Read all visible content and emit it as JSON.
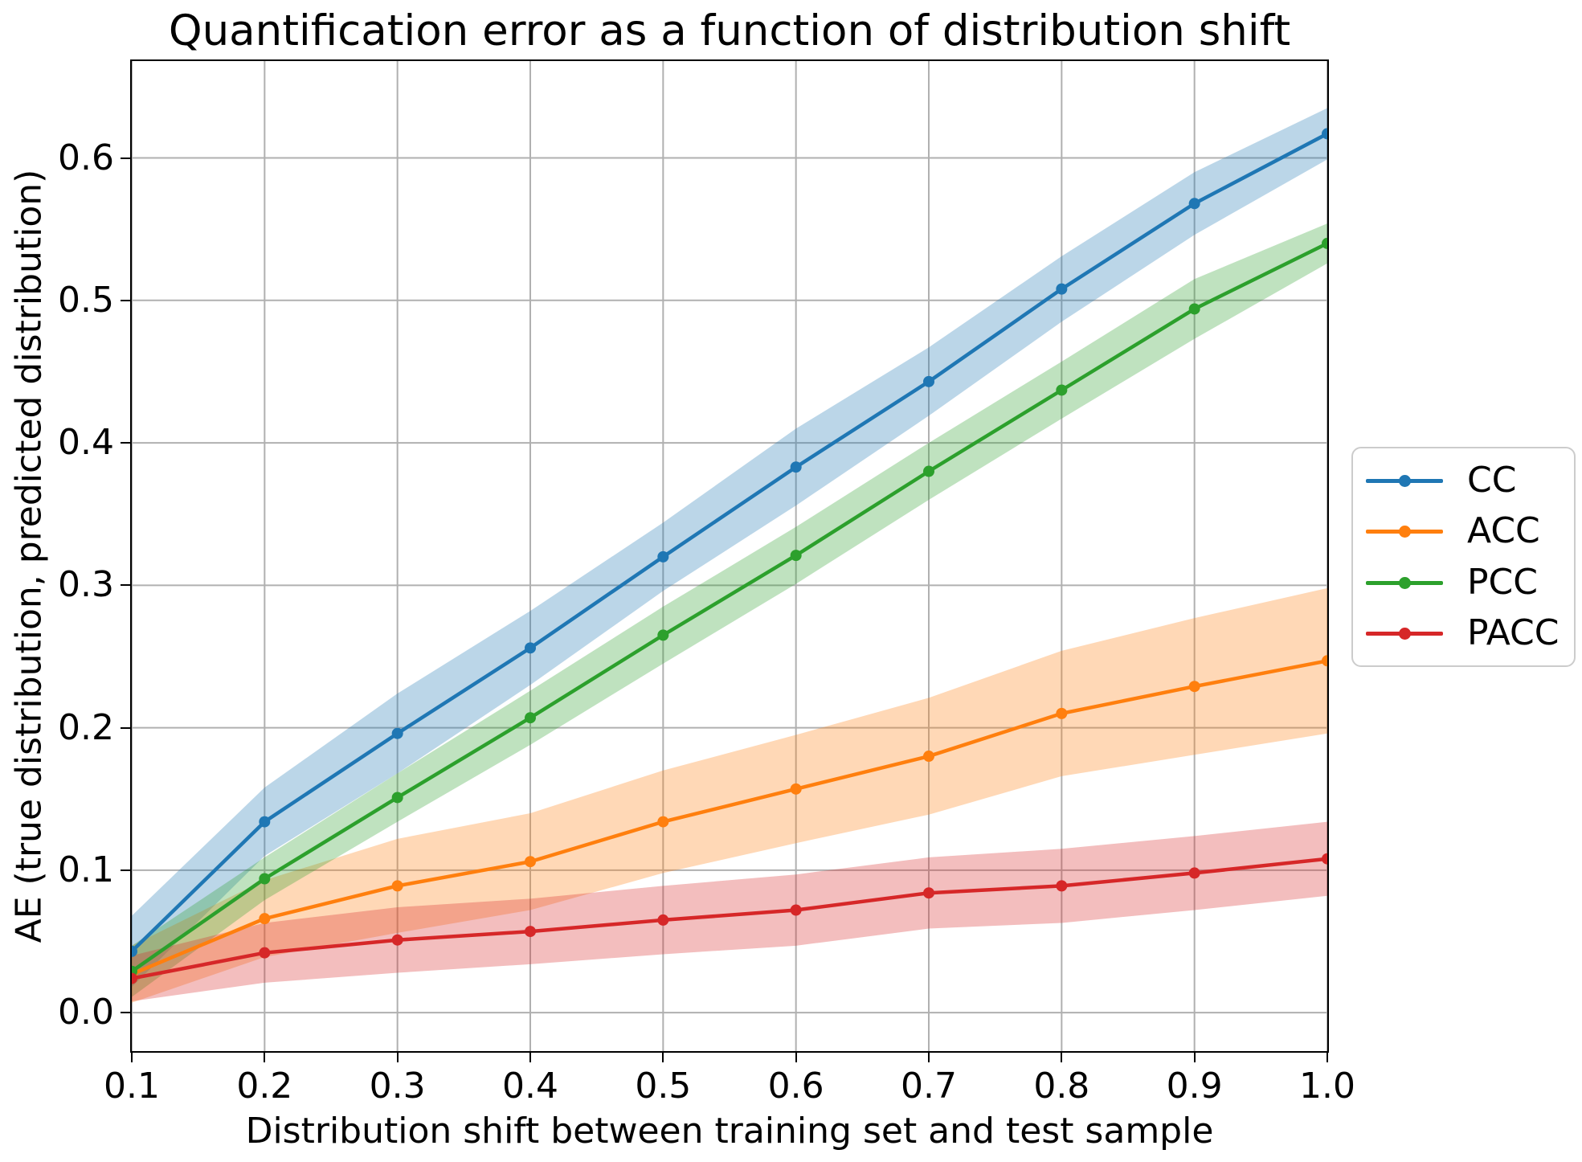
{
  "figure": {
    "title": "Quantification error as a function of distribution shift",
    "xlabel": "Distribution shift between training set and test sample",
    "ylabel": "AE (true distribution, predicted distribution)"
  },
  "chart_data": {
    "type": "line",
    "title": "Quantification error as a function of distribution shift",
    "xlabel": "Distribution shift between training set and test sample",
    "ylabel": "AE (true distribution, predicted distribution)",
    "x": [
      0.1,
      0.2,
      0.3,
      0.4,
      0.5,
      0.6,
      0.7,
      0.8,
      0.9,
      1.0
    ],
    "x_ticks": [
      "0.1",
      "0.2",
      "0.3",
      "0.4",
      "0.5",
      "0.6",
      "0.7",
      "0.8",
      "0.9",
      "1.0"
    ],
    "y_ticks": [
      "0.0",
      "0.1",
      "0.2",
      "0.3",
      "0.4",
      "0.5",
      "0.6"
    ],
    "xlim": [
      0.1,
      1.0
    ],
    "ylim": [
      -0.027,
      0.668
    ],
    "grid": true,
    "grid_color": "#b0b0b0",
    "band_opacity": 0.3,
    "legend_position": "center right, outside axes",
    "series": [
      {
        "name": "CC",
        "color": "#1f77b4",
        "values": [
          0.043,
          0.134,
          0.196,
          0.256,
          0.32,
          0.383,
          0.443,
          0.508,
          0.568,
          0.617
        ],
        "band_halfwidth": [
          0.025,
          0.024,
          0.028,
          0.026,
          0.024,
          0.027,
          0.024,
          0.023,
          0.022,
          0.018
        ]
      },
      {
        "name": "ACC",
        "color": "#ff7f0e",
        "values": [
          0.027,
          0.066,
          0.089,
          0.106,
          0.134,
          0.157,
          0.18,
          0.21,
          0.229,
          0.247
        ],
        "band_halfwidth": [
          0.02,
          0.027,
          0.033,
          0.034,
          0.036,
          0.038,
          0.041,
          0.044,
          0.048,
          0.051
        ]
      },
      {
        "name": "PCC",
        "color": "#2ca02c",
        "values": [
          0.029,
          0.094,
          0.151,
          0.207,
          0.265,
          0.321,
          0.38,
          0.437,
          0.494,
          0.54
        ],
        "band_halfwidth": [
          0.018,
          0.015,
          0.017,
          0.019,
          0.02,
          0.02,
          0.02,
          0.02,
          0.021,
          0.014
        ]
      },
      {
        "name": "PACC",
        "color": "#d62728",
        "values": [
          0.024,
          0.042,
          0.051,
          0.057,
          0.065,
          0.072,
          0.084,
          0.089,
          0.098,
          0.108
        ],
        "band_halfwidth": [
          0.016,
          0.021,
          0.023,
          0.023,
          0.024,
          0.025,
          0.025,
          0.026,
          0.026,
          0.026
        ]
      }
    ]
  }
}
